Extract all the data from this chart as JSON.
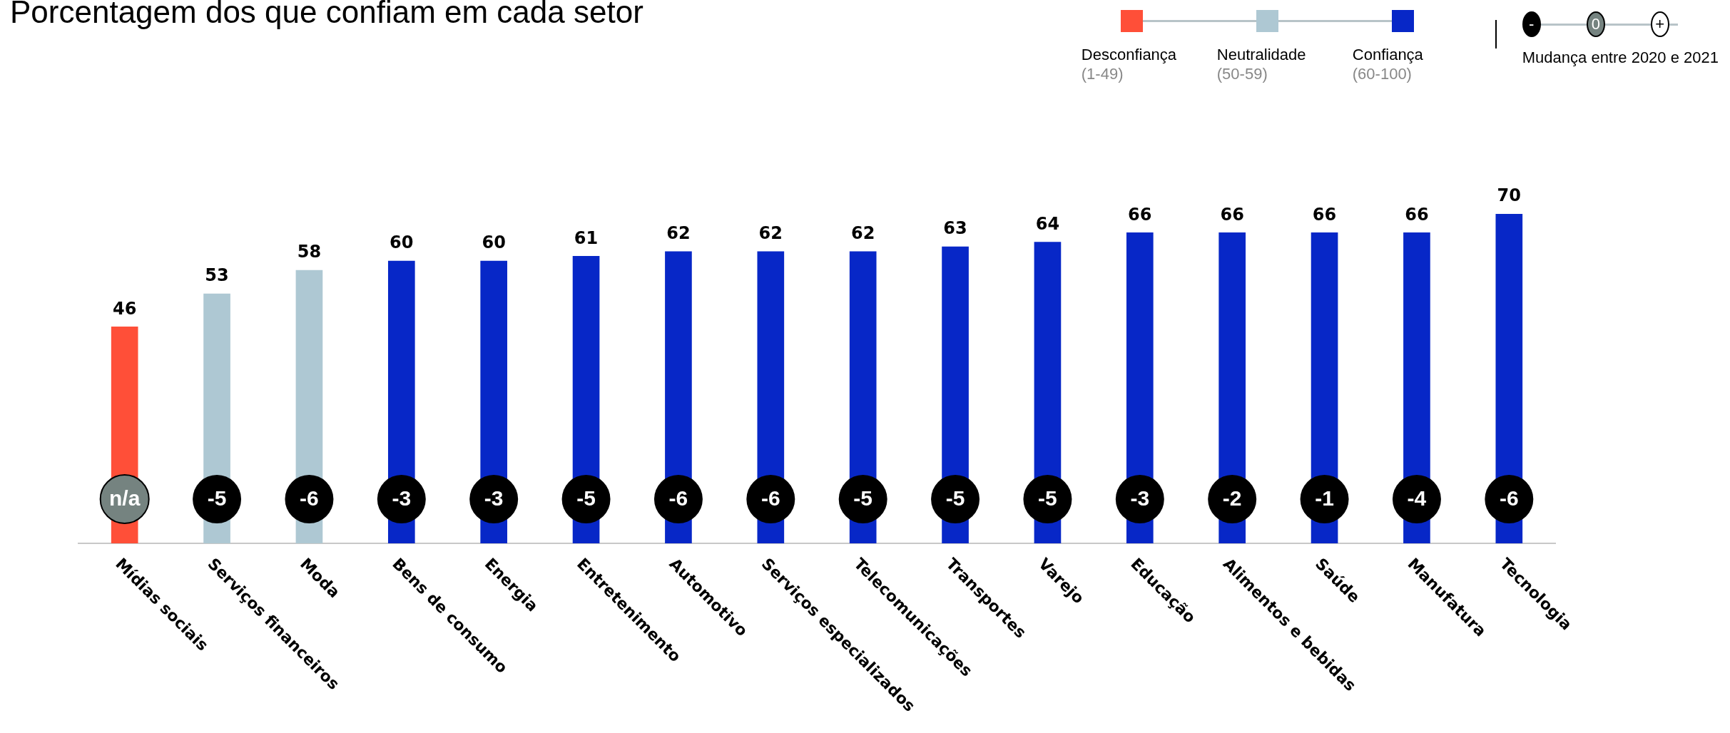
{
  "chart_data": {
    "type": "bar",
    "title": "Porcentagem dos que confiam em cada setor",
    "categories": [
      "Mídias sociais",
      "Serviços financeiros",
      "Moda",
      "Bens de consumo",
      "Energia",
      "Entretenimento",
      "Automotivo",
      "Serviços especializados",
      "Telecomunicações",
      "Transportes",
      "Varejo",
      "Educação",
      "Alimentos e bebidas",
      "Saúde",
      "Manufatura",
      "Tecnologia"
    ],
    "series": [
      {
        "name": "Desconfiança (1-49)",
        "color": "#ff4f38",
        "values": [
          46,
          null,
          null,
          null,
          null,
          null,
          null,
          null,
          null,
          null,
          null,
          null,
          null,
          null,
          null,
          null
        ]
      },
      {
        "name": "Neutralidade (50-59)",
        "color": "#aec8d3",
        "values": [
          null,
          53,
          58,
          null,
          null,
          null,
          null,
          null,
          null,
          null,
          null,
          null,
          null,
          null,
          null,
          null
        ]
      },
      {
        "name": "Confiança (60-100)",
        "color": "#0727c7",
        "values": [
          null,
          null,
          null,
          60,
          60,
          61,
          62,
          62,
          62,
          63,
          64,
          66,
          66,
          66,
          66,
          70
        ]
      }
    ],
    "stacked": true,
    "data_labels": true,
    "legend": "top right",
    "grid": false,
    "tick_labels": "x",
    "annotations": [
      "-",
      "0",
      "+",
      "Mudança entre 2020 e 2021",
      "n/a",
      "-5",
      "-6",
      "-3",
      "-3",
      "-5",
      "-6",
      "-6",
      "-5",
      "-5",
      "-5",
      "-3",
      "-2",
      "-1",
      "-4",
      "-6"
    ]
  }
}
